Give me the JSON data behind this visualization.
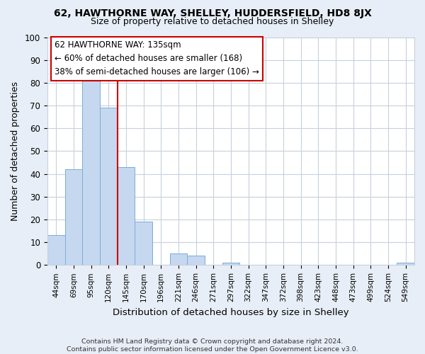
{
  "title": "62, HAWTHORNE WAY, SHELLEY, HUDDERSFIELD, HD8 8JX",
  "subtitle": "Size of property relative to detached houses in Shelley",
  "xlabel": "Distribution of detached houses by size in Shelley",
  "ylabel": "Number of detached properties",
  "footer_line1": "Contains HM Land Registry data © Crown copyright and database right 2024.",
  "footer_line2": "Contains public sector information licensed under the Open Government Licence v3.0.",
  "bin_labels": [
    "44sqm",
    "69sqm",
    "95sqm",
    "120sqm",
    "145sqm",
    "170sqm",
    "196sqm",
    "221sqm",
    "246sqm",
    "271sqm",
    "297sqm",
    "322sqm",
    "347sqm",
    "372sqm",
    "398sqm",
    "423sqm",
    "448sqm",
    "473sqm",
    "499sqm",
    "524sqm",
    "549sqm"
  ],
  "bar_heights": [
    13,
    42,
    81,
    69,
    43,
    19,
    0,
    5,
    4,
    0,
    1,
    0,
    0,
    0,
    0,
    0,
    0,
    0,
    0,
    0,
    1
  ],
  "bar_color": "#c5d8f0",
  "bar_edge_color": "#7aadd4",
  "property_line_color": "#cc0000",
  "annotation_line1": "62 HAWTHORNE WAY: 135sqm",
  "annotation_line2": "← 60% of detached houses are smaller (168)",
  "annotation_line3": "38% of semi-detached houses are larger (106) →",
  "ylim": [
    0,
    100
  ],
  "yticks": [
    0,
    10,
    20,
    30,
    40,
    50,
    60,
    70,
    80,
    90,
    100
  ],
  "background_color": "#e8eef7",
  "plot_background_color": "#ffffff",
  "grid_color": "#c8d0dc"
}
